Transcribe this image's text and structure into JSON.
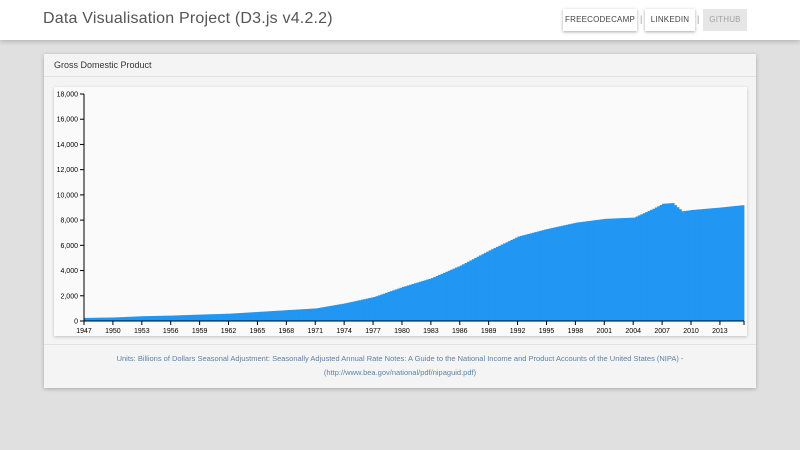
{
  "header": {
    "title": "Data Visualisation Project (D3.js v4.2.2)",
    "nav": [
      {
        "label": "FREECODECAMP",
        "state": "normal"
      },
      {
        "label": "LINKEDIN",
        "state": "normal"
      },
      {
        "label": "GITHUB",
        "state": "disabled"
      }
    ],
    "separator": "|"
  },
  "card": {
    "title": "Gross Domestic Product",
    "notes_line1": "Units: Billions of Dollars Seasonal Adjustment: Seasonally Adjusted Annual Rate Notes: A Guide to the National Income and Product Accounts of the United States (NIPA) -",
    "notes_line2": "(http://www.bea.gov/national/pdf/nipaguid.pdf)"
  },
  "colors": {
    "bar": "#2196f3",
    "link": "#5b82a6"
  },
  "chart_data": {
    "type": "bar",
    "title": "",
    "xlabel": "",
    "ylabel": "",
    "ylim": [
      0,
      18000
    ],
    "xlim": [
      1947,
      2015.5
    ],
    "yticks": [
      "0",
      "2,000",
      "4,000",
      "6,000",
      "8,000",
      "10,000",
      "12,000",
      "14,000",
      "16,000",
      "18,000"
    ],
    "xticks": [
      "1947",
      "1950",
      "1953",
      "1956",
      "1959",
      "1962",
      "1965",
      "1968",
      "1971",
      "1974",
      "1977",
      "1980",
      "1983",
      "1986",
      "1989",
      "1992",
      "1995",
      "1998",
      "2001",
      "2004",
      "2007",
      "2010",
      "2013"
    ],
    "series": [
      {
        "x": [
          1947,
          1950,
          1953,
          1956,
          1959,
          1962,
          1965,
          1968,
          1971,
          1974,
          1977,
          1980,
          1983,
          1986,
          1989,
          1992,
          1995,
          1998,
          2001,
          2004,
          2006,
          2007,
          2008,
          2009,
          2010,
          2013,
          2015.5
        ],
        "values": [
          243,
          280,
          380,
          430,
          510,
          580,
          720,
          860,
          1000,
          1400,
          1900,
          2700,
          3400,
          4400,
          5600,
          6700,
          7300,
          7800,
          8100,
          8200,
          8900,
          9300,
          9350,
          8700,
          8800,
          9000,
          9200
        ]
      }
    ]
  }
}
